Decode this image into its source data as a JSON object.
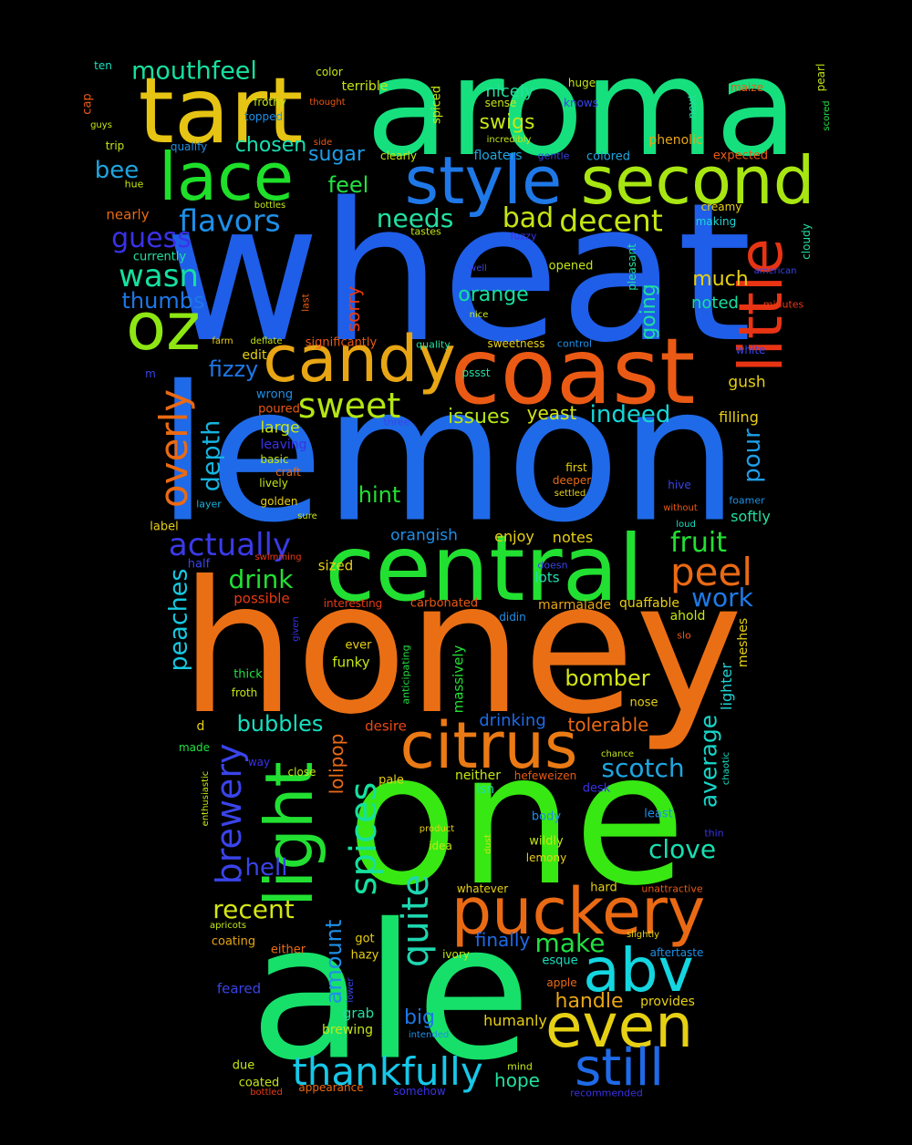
{
  "words": [
    {
      "text": "aroma",
      "color": "#16e07e"
    },
    {
      "text": "wheat",
      "color": "#1f5ee8"
    },
    {
      "text": "lemon",
      "color": "#1f6ae8"
    },
    {
      "text": "honey",
      "color": "#ea6f14"
    },
    {
      "text": "ale",
      "color": "#16e06a"
    },
    {
      "text": "one",
      "color": "#38e812"
    },
    {
      "text": "coast",
      "color": "#ea5a14"
    },
    {
      "text": "central",
      "color": "#22e032"
    },
    {
      "text": "tart",
      "color": "#e6c414"
    },
    {
      "text": "candy",
      "color": "#e8a614"
    },
    {
      "text": "lace",
      "color": "#1ee02a"
    },
    {
      "text": "style",
      "color": "#1f78e8"
    },
    {
      "text": "second",
      "color": "#a8e612"
    },
    {
      "text": "little",
      "color": "#e83414"
    },
    {
      "text": "oz",
      "color": "#8ee612"
    },
    {
      "text": "light",
      "color": "#22e032"
    },
    {
      "text": "citrus",
      "color": "#ea7a14"
    },
    {
      "text": "puckery",
      "color": "#ea6a14"
    },
    {
      "text": "abv",
      "color": "#14d6e0"
    },
    {
      "text": "even",
      "color": "#e6d014"
    },
    {
      "text": "still",
      "color": "#1f6ae8"
    },
    {
      "text": "thankfully",
      "color": "#16c8e8"
    },
    {
      "text": "brewery",
      "color": "#3a44ea"
    },
    {
      "text": "spices",
      "color": "#16e09e"
    },
    {
      "text": "quite",
      "color": "#1ed6b0"
    },
    {
      "text": "peel",
      "color": "#ea6a14"
    },
    {
      "text": "overly",
      "color": "#ea6a14"
    },
    {
      "text": "sweet",
      "color": "#b4e614"
    },
    {
      "text": "mouthfeel",
      "color": "#16e09e"
    },
    {
      "text": "flavors",
      "color": "#1e90e8"
    },
    {
      "text": "actually",
      "color": "#3a3ae8"
    },
    {
      "text": "wasn",
      "color": "#16e0a0"
    },
    {
      "text": "guess",
      "color": "#3a32e8"
    },
    {
      "text": "needs",
      "color": "#22e0a0"
    },
    {
      "text": "decent",
      "color": "#c4e614"
    },
    {
      "text": "bad",
      "color": "#c8e414"
    },
    {
      "text": "peaches",
      "color": "#16c8e0"
    },
    {
      "text": "depth",
      "color": "#16b4e0"
    },
    {
      "text": "drink",
      "color": "#22e032"
    },
    {
      "text": "fruit",
      "color": "#22e032"
    },
    {
      "text": "work",
      "color": "#1f7ae8"
    },
    {
      "text": "bomber",
      "color": "#d4e614"
    },
    {
      "text": "scotch",
      "color": "#1ea6e0"
    },
    {
      "text": "clove",
      "color": "#16e0b0"
    },
    {
      "text": "average",
      "color": "#16d6c8"
    },
    {
      "text": "make",
      "color": "#22e042"
    },
    {
      "text": "handle",
      "color": "#e8a614"
    },
    {
      "text": "recent",
      "color": "#d4e614"
    },
    {
      "text": "amount",
      "color": "#1e90e8"
    },
    {
      "text": "hell",
      "color": "#3a44e8"
    },
    {
      "text": "bubbles",
      "color": "#16e0c0"
    },
    {
      "text": "pour",
      "color": "#1e9ee8"
    },
    {
      "text": "indeed",
      "color": "#16d6d6"
    },
    {
      "text": "hint",
      "color": "#22e032"
    },
    {
      "text": "thumbs",
      "color": "#1e78e8"
    },
    {
      "text": "bee",
      "color": "#1ea6e0"
    },
    {
      "text": "feel",
      "color": "#22e042"
    },
    {
      "text": "sugar",
      "color": "#1e9ee8"
    },
    {
      "text": "chosen",
      "color": "#16e0b0"
    },
    {
      "text": "swigs",
      "color": "#c4e614"
    },
    {
      "text": "nicely",
      "color": "#22e0a0"
    },
    {
      "text": "orange",
      "color": "#16e0a0"
    },
    {
      "text": "much",
      "color": "#e6d014"
    },
    {
      "text": "noted",
      "color": "#16e0a0"
    },
    {
      "text": "going",
      "color": "#1ee0a0"
    },
    {
      "text": "fizzy",
      "color": "#1e78e8"
    },
    {
      "text": "issues",
      "color": "#b4e614"
    },
    {
      "text": "yeast",
      "color": "#d4e614"
    },
    {
      "text": "sorry",
      "color": "#ea3a14"
    },
    {
      "text": "lolipop",
      "color": "#ea6a14"
    },
    {
      "text": "tolerable",
      "color": "#ea6a14"
    },
    {
      "text": "drinking",
      "color": "#1e6ae8"
    },
    {
      "text": "finally",
      "color": "#1e6ae8"
    },
    {
      "text": "big",
      "color": "#1e78e8"
    },
    {
      "text": "hope",
      "color": "#22e0a0"
    },
    {
      "text": "large",
      "color": "#c4e614"
    },
    {
      "text": "orangish",
      "color": "#1e90e8"
    },
    {
      "text": "notes",
      "color": "#e8d014"
    },
    {
      "text": "enjoy",
      "color": "#e8d014"
    },
    {
      "text": "lots",
      "color": "#1ee0b0"
    },
    {
      "text": "filling",
      "color": "#e8d014"
    },
    {
      "text": "gush",
      "color": "#e6d014"
    },
    {
      "text": "softly",
      "color": "#22e0a0"
    },
    {
      "text": "massively",
      "color": "#22e032"
    },
    {
      "text": "nose",
      "color": "#e8d014"
    },
    {
      "text": "lighter",
      "color": "#1ed6d6"
    },
    {
      "text": "meshes",
      "color": "#e6d014"
    },
    {
      "text": "ahold",
      "color": "#c4e614"
    },
    {
      "text": "quaffable",
      "color": "#e8d014"
    },
    {
      "text": "marmalade",
      "color": "#e8a614"
    },
    {
      "text": "sized",
      "color": "#e8d014"
    },
    {
      "text": "funky",
      "color": "#c4e614"
    },
    {
      "text": "desire",
      "color": "#ea4a14"
    },
    {
      "text": "neither",
      "color": "#c4e614"
    },
    {
      "text": "isn",
      "color": "#1ee0b0"
    },
    {
      "text": "grab",
      "color": "#22e0a0"
    },
    {
      "text": "brewing",
      "color": "#c4e614"
    },
    {
      "text": "humanly",
      "color": "#e8d014"
    },
    {
      "text": "provides",
      "color": "#e8d014"
    },
    {
      "text": "pale",
      "color": "#e8d014"
    },
    {
      "text": "got",
      "color": "#e8d014"
    },
    {
      "text": "hazy",
      "color": "#e8d014"
    },
    {
      "text": "esque",
      "color": "#16e0c0"
    },
    {
      "text": "apple",
      "color": "#ea6a14"
    },
    {
      "text": "ivory",
      "color": "#c4e614"
    },
    {
      "text": "coating",
      "color": "#e8a614"
    },
    {
      "text": "either",
      "color": "#ea6a14"
    },
    {
      "text": "feared",
      "color": "#3a44e8"
    },
    {
      "text": "due",
      "color": "#c4e614"
    },
    {
      "text": "coated",
      "color": "#c4e614"
    },
    {
      "text": "appearance",
      "color": "#ea6a14"
    },
    {
      "text": "somehow",
      "color": "#3a32e8"
    },
    {
      "text": "recommended",
      "color": "#3a32e8"
    },
    {
      "text": "mind",
      "color": "#c4e614"
    },
    {
      "text": "bottled",
      "color": "#ea3a14"
    },
    {
      "text": "whatever",
      "color": "#e8d014"
    },
    {
      "text": "hard",
      "color": "#e8d014"
    },
    {
      "text": "unattractive",
      "color": "#ea5a14"
    },
    {
      "text": "idea",
      "color": "#c4e614"
    },
    {
      "text": "lemony",
      "color": "#e8d014"
    },
    {
      "text": "wildly",
      "color": "#c4e614"
    },
    {
      "text": "body",
      "color": "#1e90e8"
    },
    {
      "text": "least",
      "color": "#1e90e8"
    },
    {
      "text": "thin",
      "color": "#3a32e8"
    },
    {
      "text": "product",
      "color": "#e8d014"
    },
    {
      "text": "dust",
      "color": "#c4e614"
    },
    {
      "text": "aftertaste",
      "color": "#1e90e8"
    },
    {
      "text": "slightly",
      "color": "#e8d014"
    },
    {
      "text": "intended",
      "color": "#1e90e8"
    },
    {
      "text": "lower",
      "color": "#3a44e8"
    },
    {
      "text": "apricots",
      "color": "#c4e614"
    },
    {
      "text": "enthusiastic",
      "color": "#c4e614"
    },
    {
      "text": "made",
      "color": "#22e042"
    },
    {
      "text": "d",
      "color": "#e8d014"
    },
    {
      "text": "way",
      "color": "#3a32e8"
    },
    {
      "text": "close",
      "color": "#c4e614"
    },
    {
      "text": "hefeweizen",
      "color": "#ea5a14"
    },
    {
      "text": "desk",
      "color": "#3a32e8"
    },
    {
      "text": "chance",
      "color": "#c4e614"
    },
    {
      "text": "chaotic",
      "color": "#16e0c0"
    },
    {
      "text": "froth",
      "color": "#c4e614"
    },
    {
      "text": "thick",
      "color": "#22e042"
    },
    {
      "text": "ever",
      "color": "#e8d014"
    },
    {
      "text": "anticipating",
      "color": "#22e042"
    },
    {
      "text": "given",
      "color": "#3a32e8"
    },
    {
      "text": "didin",
      "color": "#1e90e8"
    },
    {
      "text": "slo",
      "color": "#ea5a14"
    },
    {
      "text": "interesting",
      "color": "#ea3a14"
    },
    {
      "text": "carbonated",
      "color": "#ea5a14"
    },
    {
      "text": "possible",
      "color": "#ea3a14"
    },
    {
      "text": "swimming",
      "color": "#ea3a14"
    },
    {
      "text": "half",
      "color": "#3a44e8"
    },
    {
      "text": "doesn",
      "color": "#3a44e8"
    },
    {
      "text": "label",
      "color": "#e8d014"
    },
    {
      "text": "sure",
      "color": "#c4e614"
    },
    {
      "text": "layer",
      "color": "#16b4e0"
    },
    {
      "text": "golden",
      "color": "#e8d014"
    },
    {
      "text": "lively",
      "color": "#c4e614"
    },
    {
      "text": "craft",
      "color": "#ea6a14"
    },
    {
      "text": "basic",
      "color": "#c4e614"
    },
    {
      "text": "leaving",
      "color": "#3a32e8"
    },
    {
      "text": "poured",
      "color": "#ea5a14"
    },
    {
      "text": "wrong",
      "color": "#1e90e8"
    },
    {
      "text": "three",
      "color": "#3a44e8"
    },
    {
      "text": "first",
      "color": "#e8d014"
    },
    {
      "text": "deeper",
      "color": "#ea6a14"
    },
    {
      "text": "settled",
      "color": "#e8d014"
    },
    {
      "text": "hive",
      "color": "#3a44e8"
    },
    {
      "text": "without",
      "color": "#ea5a14"
    },
    {
      "text": "foamer",
      "color": "#1e90e8"
    },
    {
      "text": "loud",
      "color": "#16e0c0"
    },
    {
      "text": "pssst",
      "color": "#22e0a0"
    },
    {
      "text": "edit",
      "color": "#e8d014"
    },
    {
      "text": "significantly",
      "color": "#ea5a14"
    },
    {
      "text": "quality",
      "color": "#22e0a0"
    },
    {
      "text": "sweetness",
      "color": "#e8d014"
    },
    {
      "text": "control",
      "color": "#1e90e8"
    },
    {
      "text": "white",
      "color": "#3a44e8"
    },
    {
      "text": "farm",
      "color": "#e8d014"
    },
    {
      "text": "deflate",
      "color": "#c4e614"
    },
    {
      "text": "nice",
      "color": "#c4e614"
    },
    {
      "text": "last",
      "color": "#ea5a14"
    },
    {
      "text": "well",
      "color": "#3a44e8"
    },
    {
      "text": "pleasant",
      "color": "#22e0a0"
    },
    {
      "text": "opened",
      "color": "#c4e614"
    },
    {
      "text": "minutes",
      "color": "#ea3a14"
    },
    {
      "text": "american",
      "color": "#3a44e8"
    },
    {
      "text": "cloudy",
      "color": "#22e0a0"
    },
    {
      "text": "making",
      "color": "#1ed6d6"
    },
    {
      "text": "creamy",
      "color": "#e8d014"
    },
    {
      "text": "fuzzy",
      "color": "#3a32e8"
    },
    {
      "text": "tastes",
      "color": "#c4e614"
    },
    {
      "text": "bottles",
      "color": "#c4e614"
    },
    {
      "text": "nearly",
      "color": "#ea6a14"
    },
    {
      "text": "currently",
      "color": "#22e0a0"
    },
    {
      "text": "hue",
      "color": "#c4e614"
    },
    {
      "text": "trip",
      "color": "#c4e614"
    },
    {
      "text": "qualify",
      "color": "#1e90e8"
    },
    {
      "text": "frothy",
      "color": "#c4e614"
    },
    {
      "text": "topped",
      "color": "#1e90e8"
    },
    {
      "text": "guys",
      "color": "#c4e614"
    },
    {
      "text": "cap",
      "color": "#ea5a14"
    },
    {
      "text": "ten",
      "color": "#16e0c0"
    },
    {
      "text": "color",
      "color": "#c4e614"
    },
    {
      "text": "terrible",
      "color": "#c4e614"
    },
    {
      "text": "thought",
      "color": "#ea5a14"
    },
    {
      "text": "spiced",
      "color": "#c4e614"
    },
    {
      "text": "sense",
      "color": "#c4e614"
    },
    {
      "text": "incredibly",
      "color": "#c4e614"
    },
    {
      "text": "huge",
      "color": "#c4e614"
    },
    {
      "text": "knows",
      "color": "#3a44e8"
    },
    {
      "text": "next",
      "color": "#22e0a0"
    },
    {
      "text": "maize",
      "color": "#ea5a14"
    },
    {
      "text": "pearl",
      "color": "#c4e614"
    },
    {
      "text": "scored",
      "color": "#22e042"
    },
    {
      "text": "side",
      "color": "#ea5a14"
    },
    {
      "text": "clearly",
      "color": "#c4e614"
    },
    {
      "text": "floaters",
      "color": "#1ea6e0"
    },
    {
      "text": "gentle",
      "color": "#3a44e8"
    },
    {
      "text": "colored",
      "color": "#1ea6e0"
    },
    {
      "text": "phenolic",
      "color": "#e8a614"
    },
    {
      "text": "expected",
      "color": "#ea5a14"
    },
    {
      "text": "m",
      "color": "#3a44e8"
    }
  ]
}
